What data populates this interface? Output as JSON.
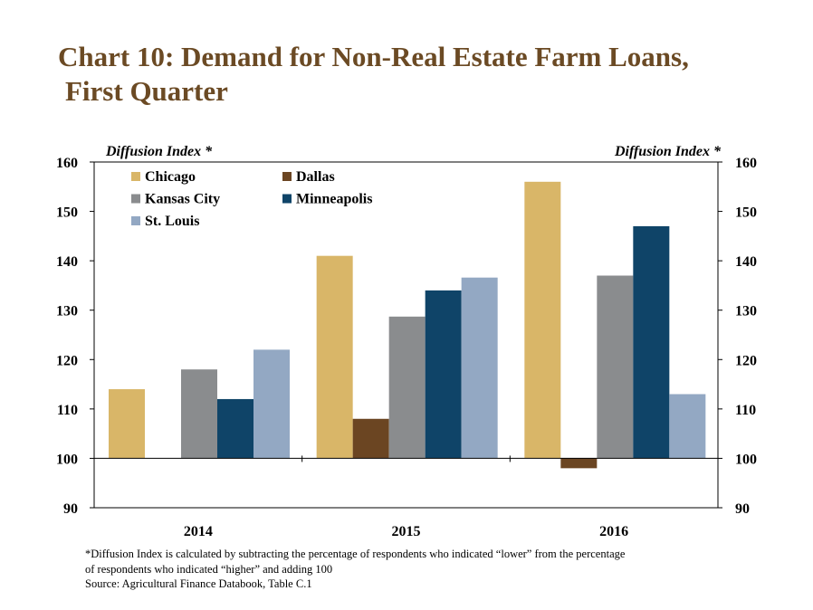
{
  "title_line1": "Chart 10: Demand for Non-Real Estate Farm Loans,",
  "title_line2": "First Quarter",
  "chart_data": {
    "type": "bar",
    "ylabel_left": "Diffusion Index *",
    "ylabel_right": "Diffusion Index *",
    "ylim": [
      90,
      160
    ],
    "yticks": [
      90,
      100,
      110,
      120,
      130,
      140,
      150,
      160
    ],
    "baseline": 100,
    "categories": [
      "2014",
      "2015",
      "2016"
    ],
    "series": [
      {
        "name": "Chicago",
        "color": "#d9b668",
        "values": [
          114,
          141,
          156
        ]
      },
      {
        "name": "Dallas",
        "color": "#6b4522",
        "values": [
          null,
          108,
          98
        ]
      },
      {
        "name": "Kansas City",
        "color": "#8a8c8e",
        "values": [
          118,
          128.7,
          137
        ]
      },
      {
        "name": "Minneapolis",
        "color": "#0f4468",
        "values": [
          112,
          134,
          147
        ]
      },
      {
        "name": "St. Louis",
        "color": "#93a8c3",
        "values": [
          122,
          136.6,
          113
        ]
      }
    ],
    "legend_position": "top-left",
    "grid": false
  },
  "footnote": {
    "line1": "*Diffusion Index is calculated by subtracting the percentage of respondents who indicated “lower” from the percentage",
    "line2": "of respondents who indicated “higher” and adding 100",
    "source": "Source: Agricultural Finance Databook, Table C.1"
  }
}
